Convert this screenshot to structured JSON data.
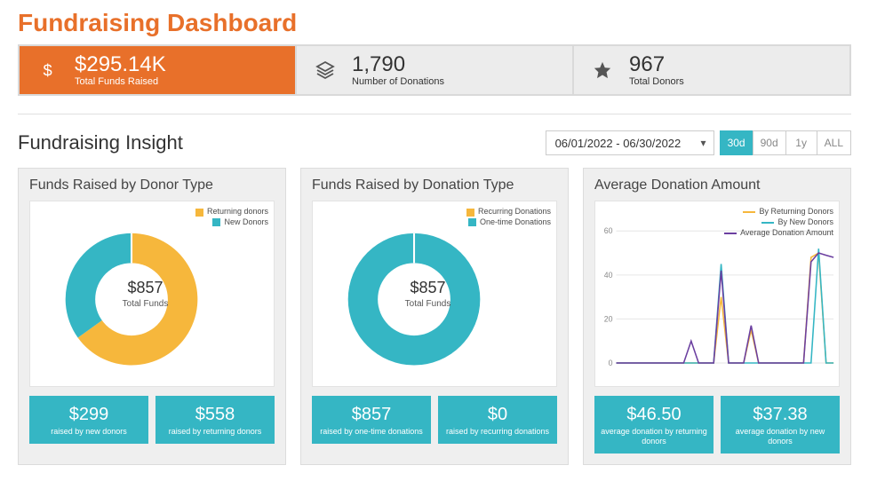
{
  "colors": {
    "accent_orange": "#e8702a",
    "teal": "#35b6c4",
    "yellow": "#f6b73c",
    "purple": "#6b3fa0",
    "grid": "#e6e6e6",
    "kpi_bg": "#ececec",
    "card_bg": "#efefef"
  },
  "page_title": "Fundraising Dashboard",
  "kpis": [
    {
      "icon": "dollar",
      "value": "$295.14K",
      "label": "Total Funds Raised",
      "active": true
    },
    {
      "icon": "layers",
      "value": "1,790",
      "label": "Number of Donations",
      "active": false
    },
    {
      "icon": "star",
      "value": "967",
      "label": "Total Donors",
      "active": false
    }
  ],
  "insight": {
    "title": "Fundraising Insight",
    "date_range": "06/01/2022 - 06/30/2022",
    "ranges": [
      "30d",
      "90d",
      "1y",
      "ALL"
    ],
    "active_range": "30d"
  },
  "donor_type_chart": {
    "title": "Funds Raised by Donor Type",
    "type": "donut",
    "center_value": "$857",
    "center_label": "Total Funds",
    "legend": [
      {
        "label": "Returning donors",
        "color": "#f6b73c"
      },
      {
        "label": "New Donors",
        "color": "#35b6c4"
      }
    ],
    "slices": [
      {
        "label": "Returning donors",
        "value": 558,
        "color": "#f6b73c",
        "pct": 0.651
      },
      {
        "label": "New Donors",
        "value": 299,
        "color": "#35b6c4",
        "pct": 0.349
      }
    ],
    "inner_radius_pct": 0.55,
    "stats": [
      {
        "value": "$299",
        "label": "raised by new donors"
      },
      {
        "value": "$558",
        "label": "raised by returning donors"
      }
    ]
  },
  "donation_type_chart": {
    "title": "Funds Raised by Donation Type",
    "type": "donut",
    "center_value": "$857",
    "center_label": "Total Funds",
    "legend": [
      {
        "label": "Recurring Donations",
        "color": "#f6b73c"
      },
      {
        "label": "One-time Donations",
        "color": "#35b6c4"
      }
    ],
    "slices": [
      {
        "label": "Recurring Donations",
        "value": 0,
        "color": "#f6b73c",
        "pct": 0.0
      },
      {
        "label": "One-time Donations",
        "value": 857,
        "color": "#35b6c4",
        "pct": 1.0
      }
    ],
    "inner_radius_pct": 0.55,
    "stats": [
      {
        "value": "$857",
        "label": "raised by one-time donations"
      },
      {
        "value": "$0",
        "label": "raised by recurring donations"
      }
    ]
  },
  "avg_donation_chart": {
    "title": "Average Donation Amount",
    "type": "line",
    "ylim": [
      0,
      60
    ],
    "yticks": [
      0,
      20,
      40,
      60
    ],
    "x_count": 30,
    "grid_color": "#e6e6e6",
    "background": "#ffffff",
    "legend": [
      {
        "label": "By Returning Donors",
        "color": "#f6b73c"
      },
      {
        "label": "By New Donors",
        "color": "#35b6c4"
      },
      {
        "label": "Average Donation Amount",
        "color": "#6b3fa0"
      }
    ],
    "series": [
      {
        "name": "By Returning Donors",
        "color": "#f6b73c",
        "points": [
          0,
          0,
          0,
          0,
          0,
          0,
          0,
          0,
          0,
          0,
          0,
          0,
          0,
          0,
          30,
          0,
          0,
          0,
          15,
          0,
          0,
          0,
          0,
          0,
          0,
          0,
          48,
          50,
          0,
          0
        ]
      },
      {
        "name": "By New Donors",
        "color": "#35b6c4",
        "points": [
          0,
          0,
          0,
          0,
          0,
          0,
          0,
          0,
          0,
          0,
          0,
          0,
          0,
          0,
          45,
          0,
          0,
          0,
          0,
          0,
          0,
          0,
          0,
          0,
          0,
          0,
          0,
          52,
          0,
          0
        ]
      },
      {
        "name": "Average Donation Amount",
        "color": "#6b3fa0",
        "points": [
          0,
          0,
          0,
          0,
          0,
          0,
          0,
          0,
          0,
          0,
          10,
          0,
          0,
          0,
          42,
          0,
          0,
          0,
          17,
          0,
          0,
          0,
          0,
          0,
          0,
          0,
          46,
          50,
          49,
          48
        ]
      }
    ],
    "stats": [
      {
        "value": "$46.50",
        "label": "average donation by returning donors"
      },
      {
        "value": "$37.38",
        "label": "average donation by new donors"
      }
    ]
  }
}
